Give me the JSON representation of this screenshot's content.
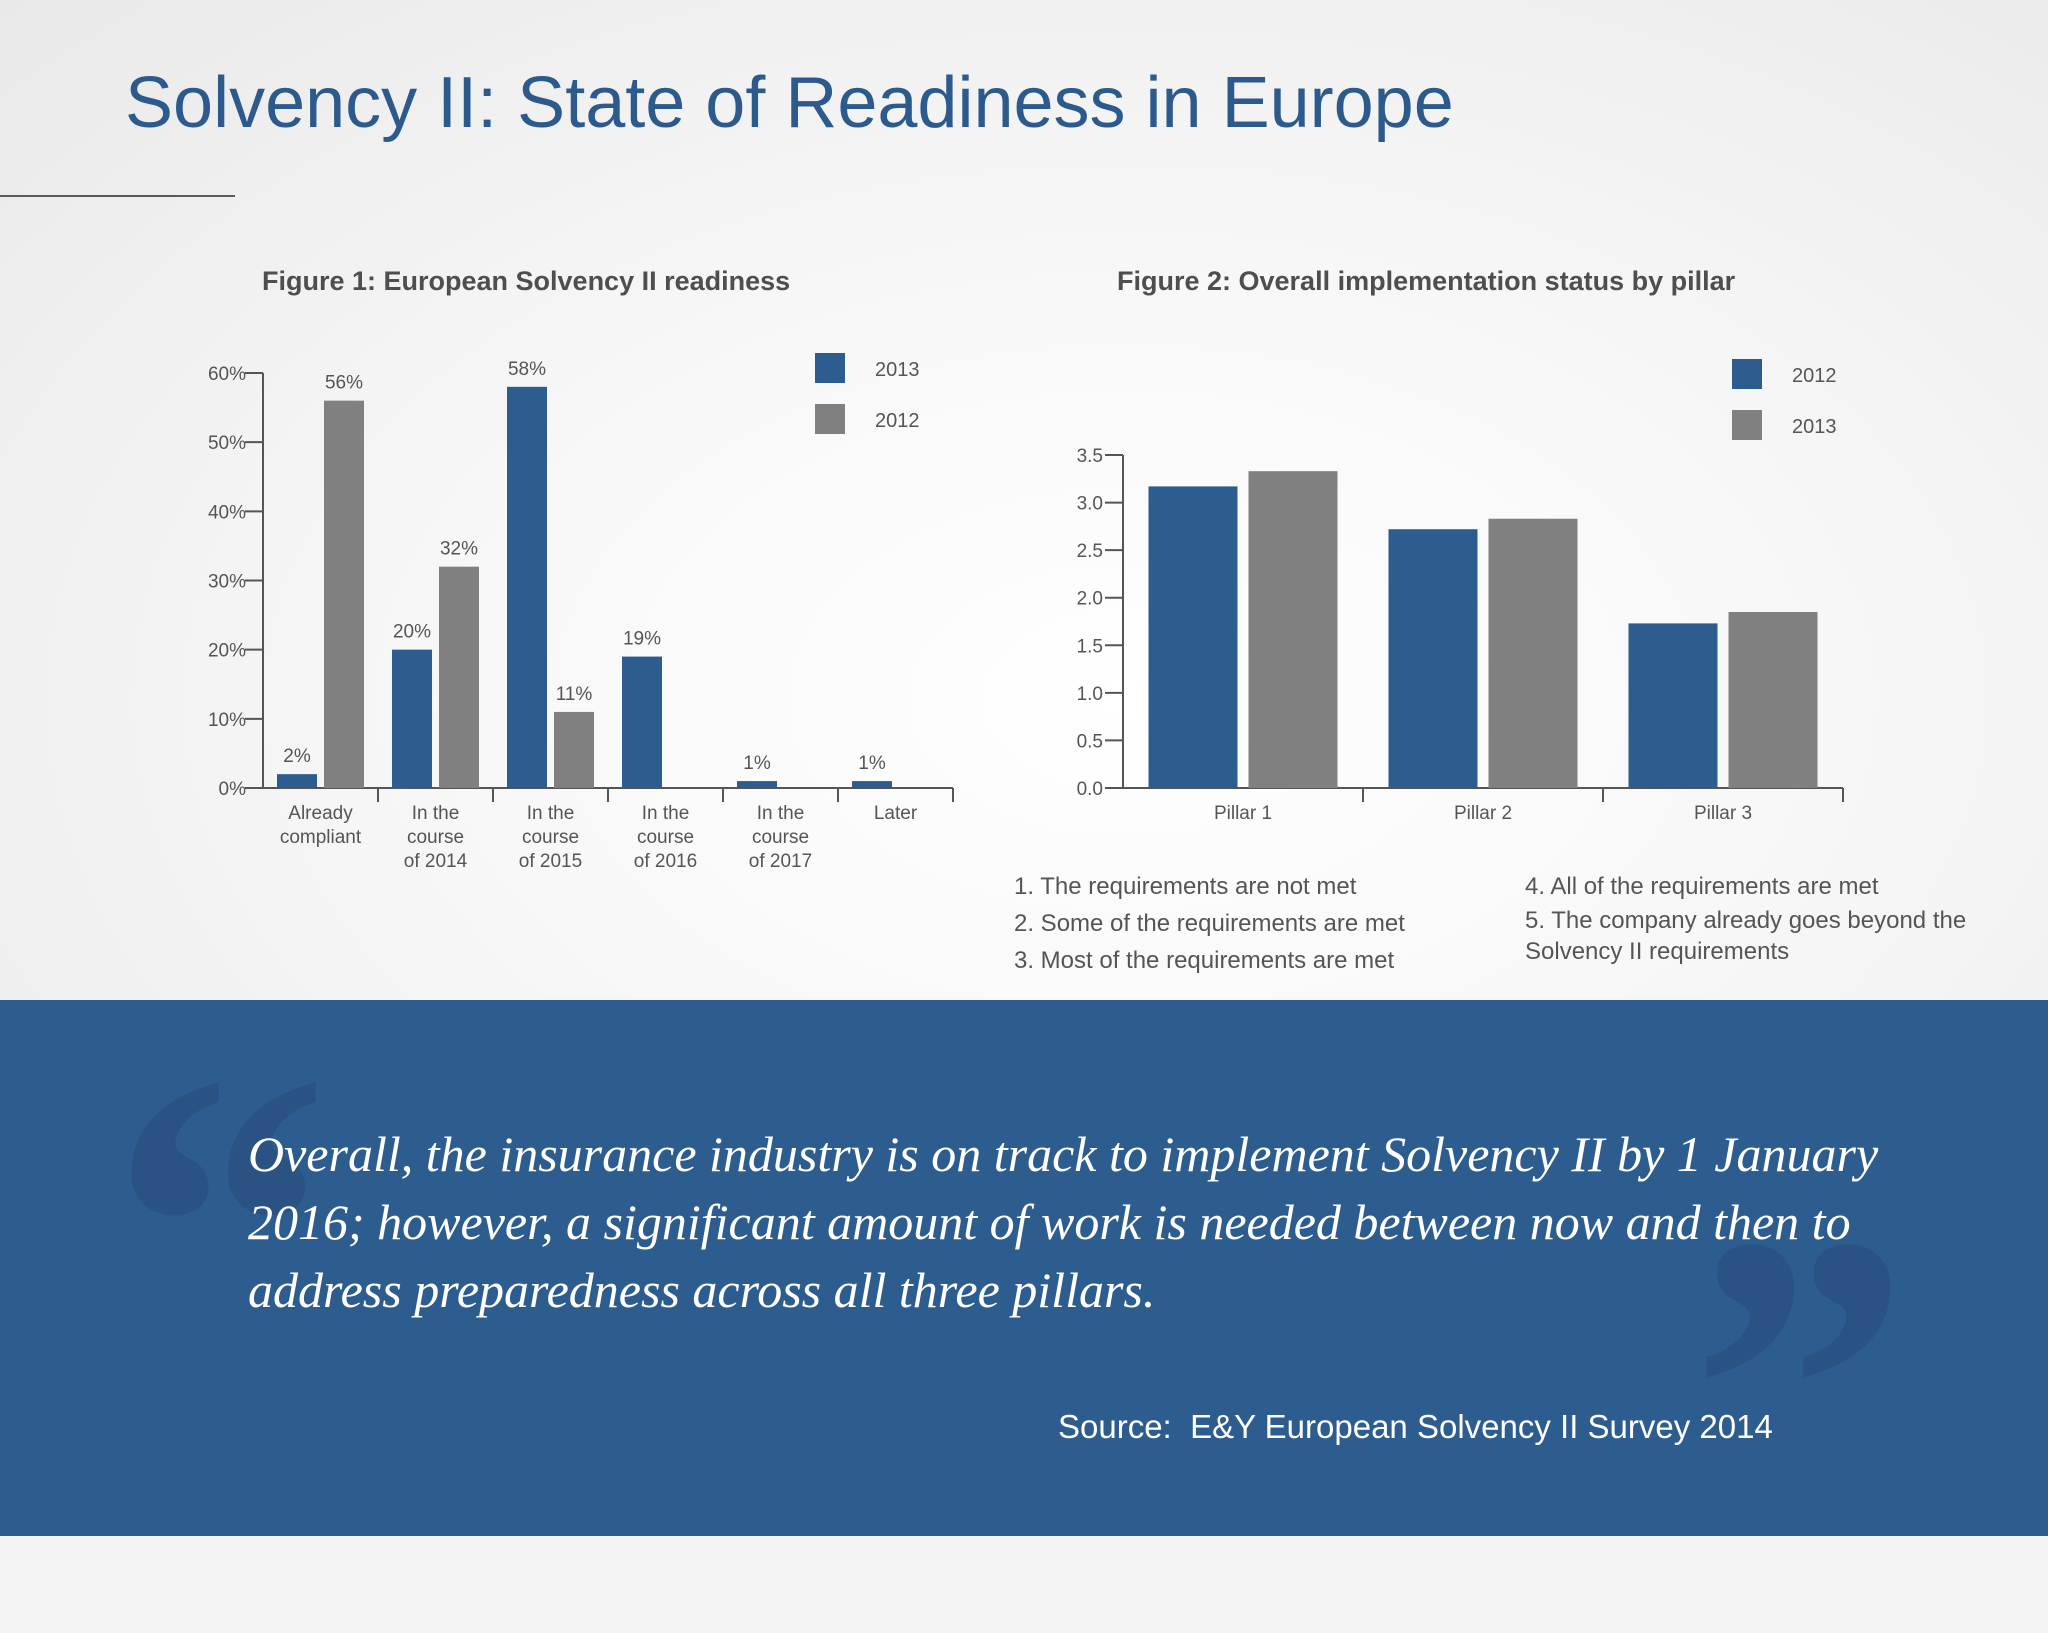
{
  "page": {
    "title": "Solvency II: State of Readiness in Europe"
  },
  "figures": {
    "fig1_title": "Figure 1: European Solvency II readiness",
    "fig2_title": "Figure 2: Overall implementation status by pillar"
  },
  "chart_data": [
    {
      "type": "bar",
      "title": "Figure 1: European Solvency II readiness",
      "categories": [
        [
          "Already",
          "compliant"
        ],
        [
          "In the",
          "course",
          "of 2014"
        ],
        [
          "In the",
          "course",
          "of 2015"
        ],
        [
          "In the",
          "course",
          "of 2016"
        ],
        [
          "In the",
          "course",
          "of 2017"
        ],
        [
          "Later"
        ]
      ],
      "series": [
        {
          "name": "2013",
          "values": [
            2,
            20,
            58,
            19,
            1,
            1
          ],
          "labels": [
            "2%",
            "20%",
            "58%",
            "19%",
            "1%",
            "1%"
          ]
        },
        {
          "name": "2012",
          "values": [
            56,
            32,
            11,
            null,
            null,
            null
          ],
          "labels": [
            "56%",
            "32%",
            "11%",
            "",
            "",
            ""
          ]
        }
      ],
      "ylim": [
        0,
        60
      ],
      "yticks": [
        0,
        10,
        20,
        30,
        40,
        50,
        60
      ],
      "ytick_labels": [
        "0%",
        "10%",
        "20%",
        "30%",
        "40%",
        "50%",
        "60%"
      ],
      "legend_position": "top-right",
      "grid": false,
      "colors": {
        "2013": "#2d5c8f",
        "2012": "#808080"
      }
    },
    {
      "type": "bar",
      "title": "Figure 2: Overall implementation status by pillar",
      "categories": [
        "Pillar 1",
        "Pillar 2",
        "Pillar 3"
      ],
      "series": [
        {
          "name": "2012",
          "values": [
            3.17,
            2.72,
            1.73
          ]
        },
        {
          "name": "2013",
          "values": [
            3.33,
            2.83,
            1.85
          ]
        }
      ],
      "ylim": [
        0,
        3.5
      ],
      "yticks": [
        0,
        0.5,
        1.0,
        1.5,
        2.0,
        2.5,
        3.0,
        3.5
      ],
      "ytick_labels": [
        "0.0",
        "0.5",
        "1.0",
        "1.5",
        "2.0",
        "2.5",
        "3.0",
        "3.5"
      ],
      "legend_position": "top-right",
      "grid": false,
      "colors": {
        "2012": "#2d5c8f",
        "2013": "#808080"
      }
    }
  ],
  "legend_notes": {
    "left": [
      "1. The requirements are not met",
      "2. Some of the requirements are met",
      "3. Most of the requirements are met"
    ],
    "right": [
      "4. All of the requirements are met",
      "5. The company already goes beyond the Solvency II requirements"
    ]
  },
  "quote": {
    "text": "Overall, the insurance industry is on track to implement Solvency II by 1 January 2016; however, a significant amount of work is needed between now and then to address preparedness across all three pillars.",
    "source": "Source:  E&Y European Solvency II Survey 2014"
  }
}
